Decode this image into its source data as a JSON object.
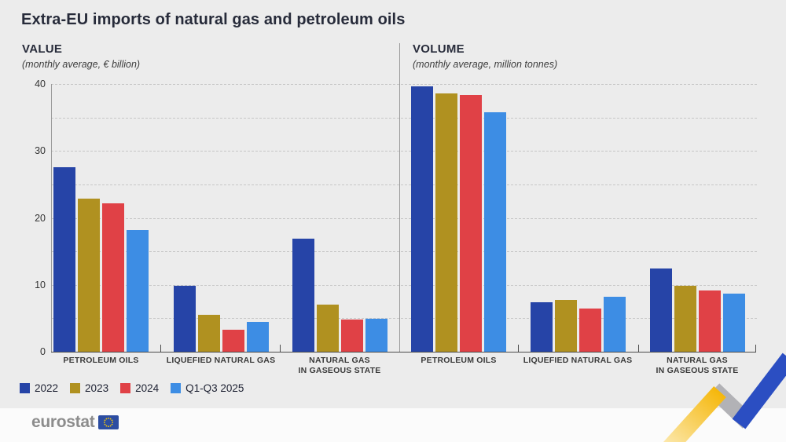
{
  "title": "Extra-EU imports of natural gas and petroleum oils",
  "footer": {
    "logo_text": "eurostat"
  },
  "decorations": {
    "ribbon_yellow": "#f5b70a",
    "ribbon_yellow_fade": "#fce9b0",
    "ribbon_gray": "#b2b2b6",
    "ribbon_blue": "#2b4ec2",
    "flag_blue": "#2c4da1",
    "flag_star_yellow": "#ffcc00"
  },
  "chart_data": [
    {
      "type": "bar",
      "title": "VALUE",
      "subtitle": "(monthly average, € billion)",
      "categories": [
        "PETROLEUM OILS",
        "LIQUEFIED NATURAL GAS",
        "NATURAL GAS\nIN GASEOUS STATE"
      ],
      "series": [
        {
          "name": "2022",
          "color": "#2644a7",
          "values": [
            27.6,
            9.8,
            16.9
          ]
        },
        {
          "name": "2023",
          "color": "#b09120",
          "values": [
            22.9,
            5.5,
            7.0
          ]
        },
        {
          "name": "2024",
          "color": "#e04146",
          "values": [
            22.2,
            3.3,
            4.8
          ]
        },
        {
          "name": "Q1-Q3 2025",
          "color": "#3d8de4",
          "values": [
            18.2,
            4.5,
            4.9
          ]
        }
      ],
      "ylim": [
        0,
        40
      ],
      "yticks": [
        0,
        10,
        20,
        30,
        40
      ],
      "grid_step": 5,
      "grid": true,
      "legend_position": "bottom-left"
    },
    {
      "type": "bar",
      "title": "VOLUME",
      "subtitle": "(monthly average, million tonnes)",
      "categories": [
        "PETROLEUM OILS",
        "LIQUEFIED NATURAL GAS",
        "NATURAL GAS\nIN GASEOUS STATE"
      ],
      "series": [
        {
          "name": "2022",
          "color": "#2644a7",
          "values": [
            39.7,
            7.4,
            12.4
          ]
        },
        {
          "name": "2023",
          "color": "#b09120",
          "values": [
            38.6,
            7.7,
            9.8
          ]
        },
        {
          "name": "2024",
          "color": "#e04146",
          "values": [
            38.3,
            6.5,
            9.1
          ]
        },
        {
          "name": "Q1-Q3 2025",
          "color": "#3d8de4",
          "values": [
            35.8,
            8.2,
            8.7
          ]
        }
      ],
      "ylim": [
        0,
        40
      ],
      "yticks": [
        0,
        10,
        20,
        30,
        40
      ],
      "grid_step": 5,
      "grid": true,
      "legend_position": "bottom-left"
    }
  ]
}
